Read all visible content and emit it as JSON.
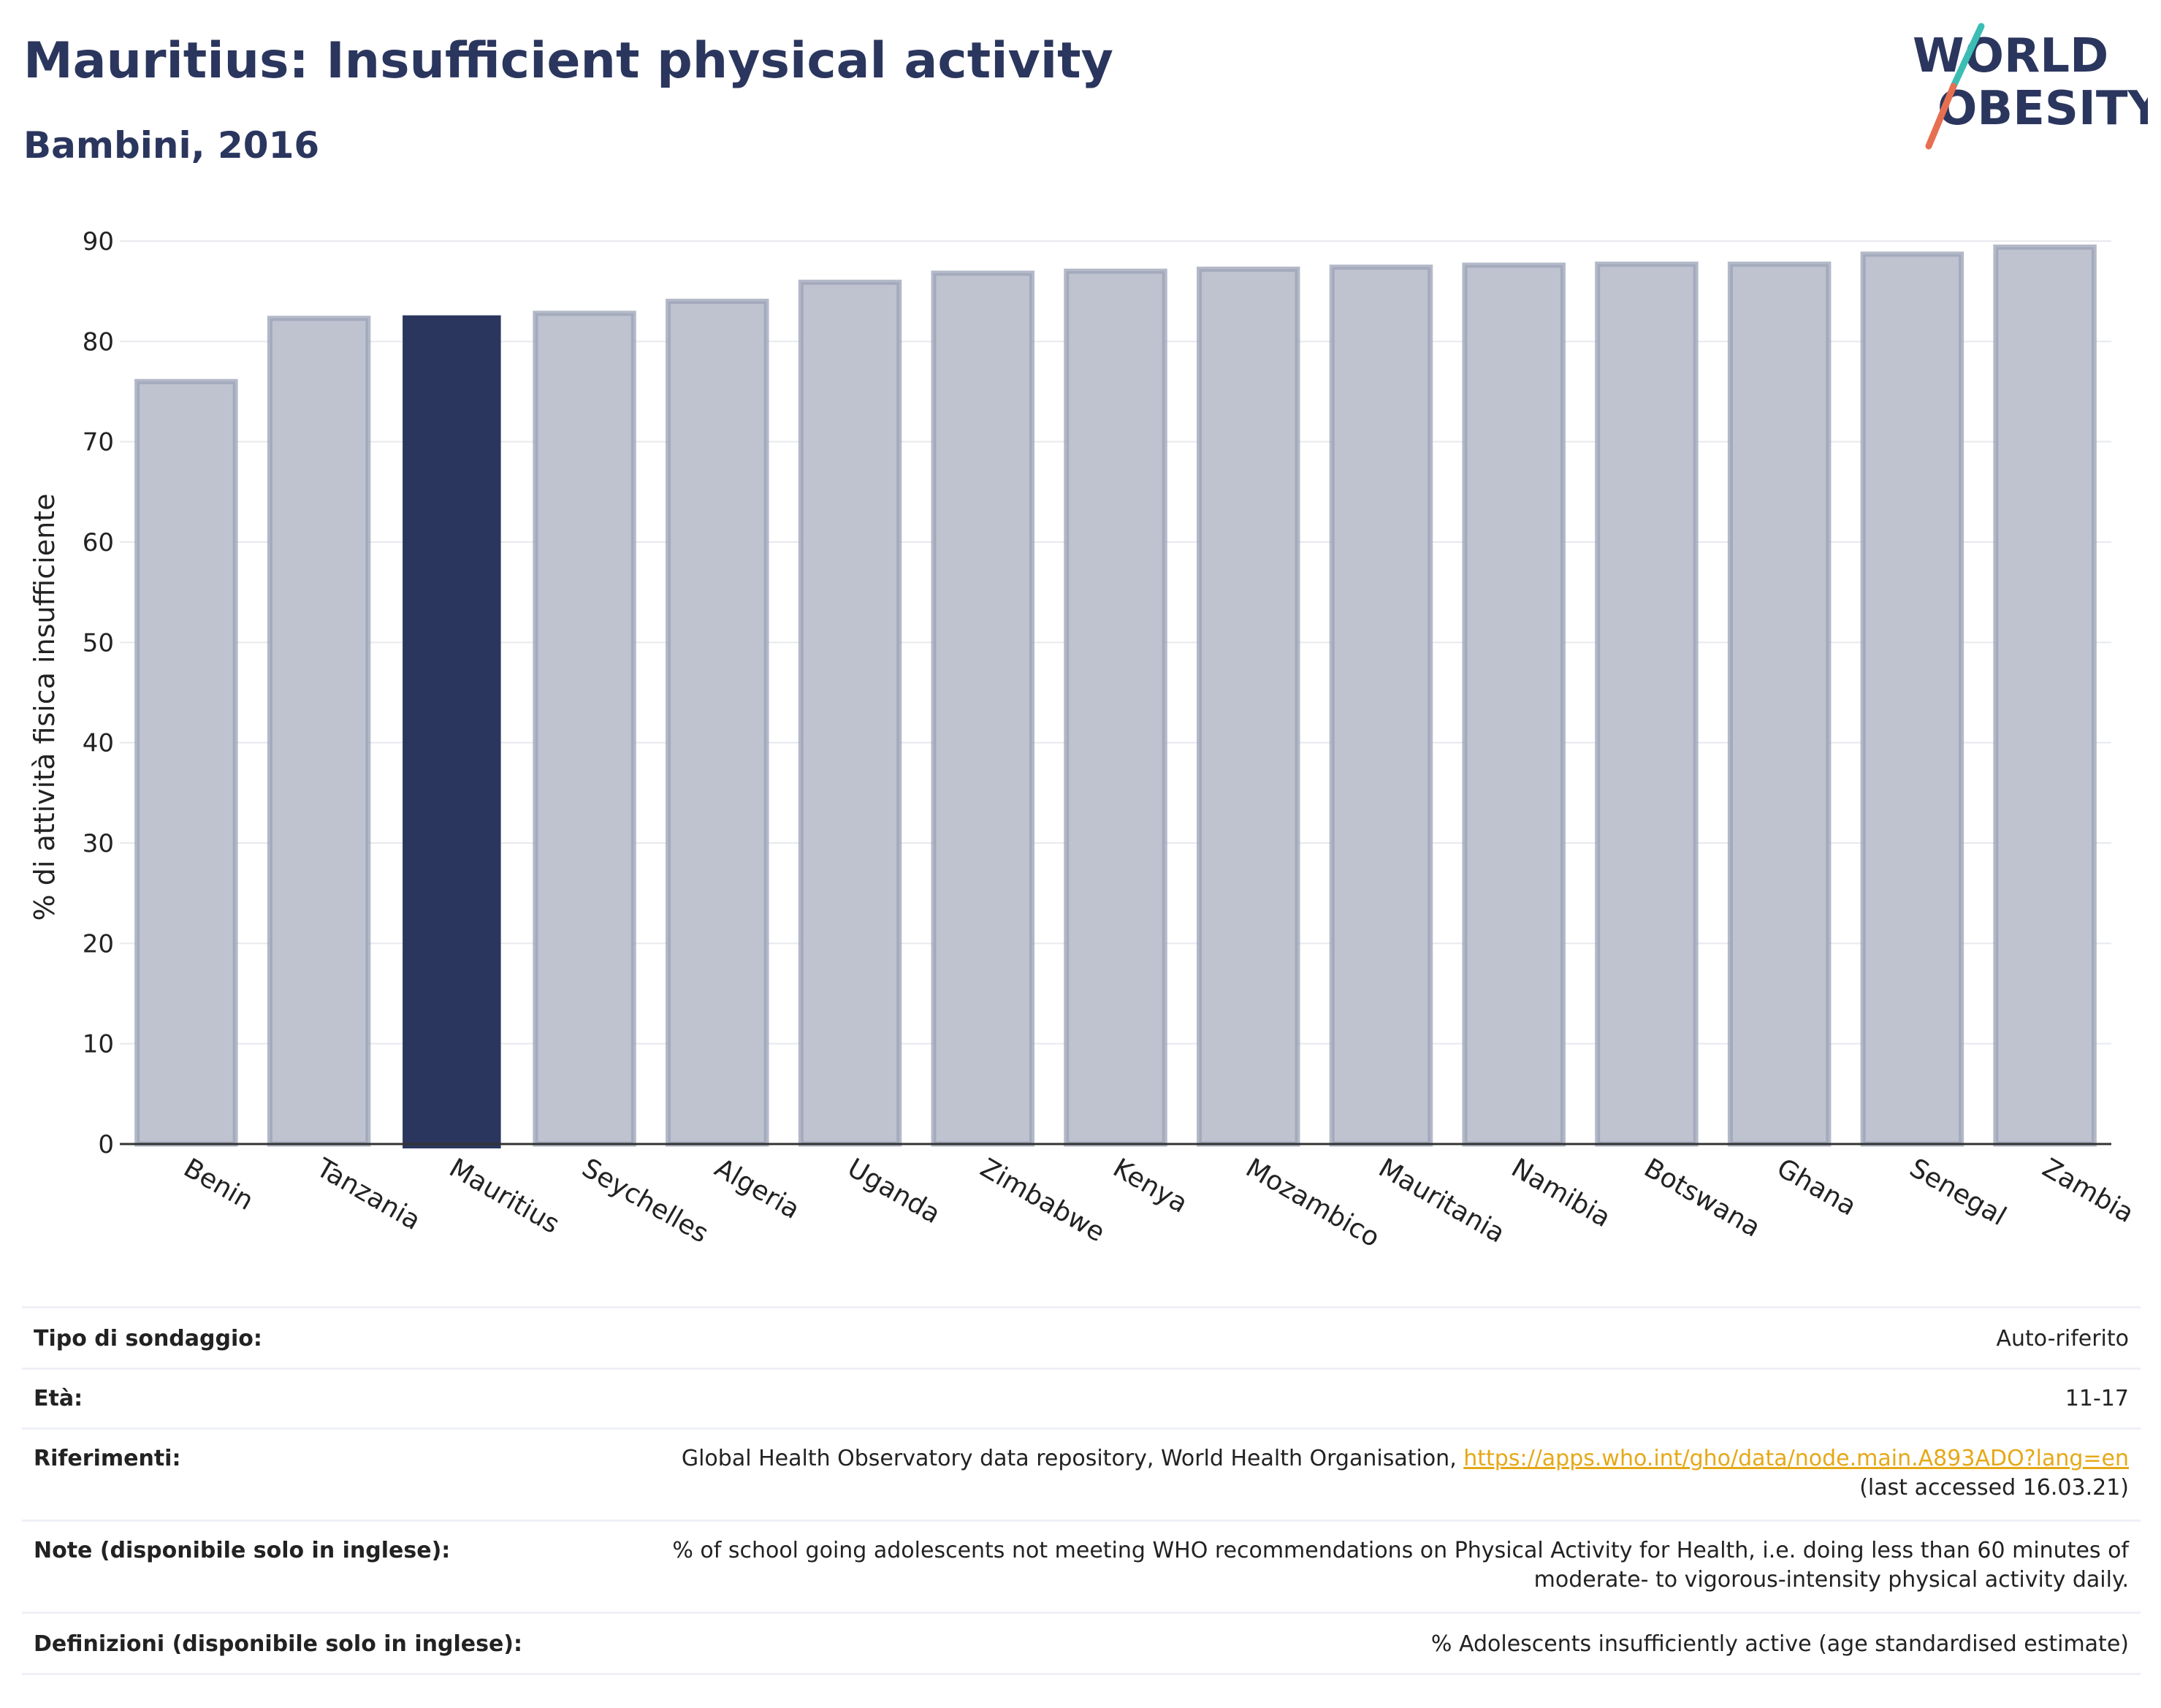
{
  "header": {
    "title": "Mauritius: Insufficient physical activity",
    "subtitle": "Bambini, 2016"
  },
  "logo": {
    "line1": "WORLD",
    "line2": "OBESITY",
    "colors": {
      "text": "#2b365e",
      "slash_top": "#3bbdb4",
      "slash_bottom": "#e76f51"
    }
  },
  "chart_data": {
    "type": "bar",
    "categories": [
      "Benin",
      "Tanzania",
      "Mauritius",
      "Seychelles",
      "Algeria",
      "Uganda",
      "Zimbabwe",
      "Kenya",
      "Mozambico",
      "Mauritania",
      "Namibia",
      "Botswana",
      "Ghana",
      "Senegal",
      "Zambia"
    ],
    "values": [
      76.0,
      82.3,
      82.6,
      82.8,
      84.0,
      85.9,
      86.8,
      87.0,
      87.2,
      87.4,
      87.6,
      87.7,
      87.7,
      88.7,
      89.4
    ],
    "highlight": "Mauritius",
    "ylabel": "% di attività fisica insufficiente",
    "yticks": [
      0,
      10,
      20,
      30,
      40,
      50,
      60,
      70,
      80,
      90
    ],
    "ylim": [
      0,
      90
    ],
    "grid": true,
    "colors": {
      "bar": "#bfc3d0",
      "bar_border": "#9aa1b6",
      "highlight": "#2b365e",
      "grid": "#e8e9ee",
      "axis": "#333333"
    }
  },
  "info": {
    "rows": [
      {
        "label": "Tipo di sondaggio:",
        "value": "Auto-riferito"
      },
      {
        "label": "Età:",
        "value": "11-17"
      },
      {
        "label": "Riferimenti:",
        "value_text": "Global Health Observatory data repository, World Health Organisation, ",
        "value_link": "https://apps.who.int/gho/data/node.main.A893ADO?lang=en",
        "value_line2": "(last accessed 16.03.21)"
      },
      {
        "label": "Note (disponibile solo in inglese):",
        "value_line1": "% of school going adolescents not meeting WHO recommendations on Physical Activity for Health, i.e. doing less than 60 minutes of",
        "value_line2": "moderate- to vigorous-intensity physical activity daily."
      },
      {
        "label": "Definizioni (disponibile solo in inglese):",
        "value": "% Adolescents insufficiently active (age standardised estimate)"
      }
    ]
  }
}
